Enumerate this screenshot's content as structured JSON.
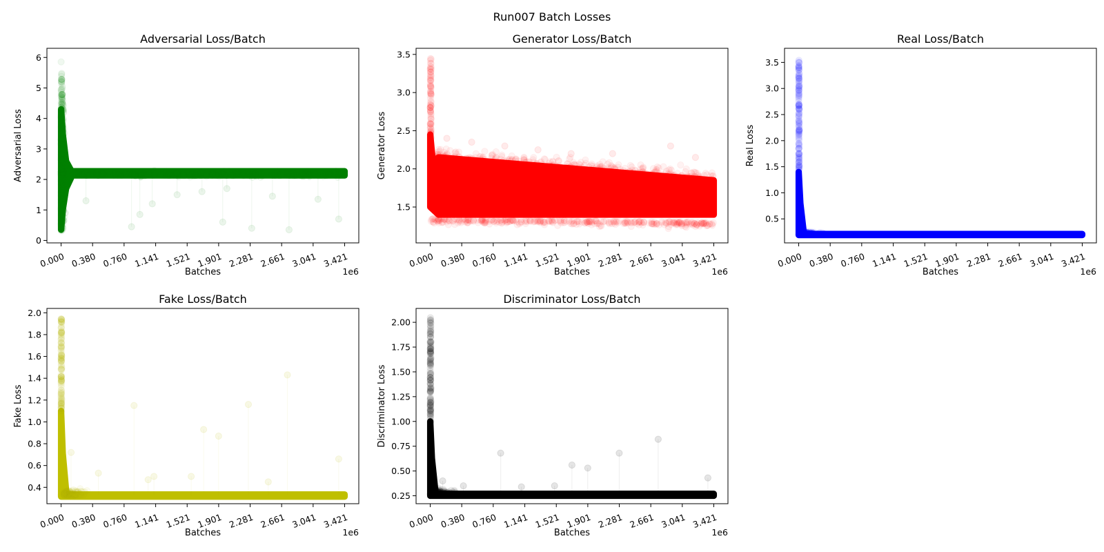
{
  "figure_title": "Run007 Batch Losses",
  "chart_data": [
    {
      "type": "scatter",
      "title": "Adversarial Loss/Batch",
      "xlabel": "Batches",
      "ylabel": "Adversarial Loss",
      "x_offset_label": "1e6",
      "color": "#008000",
      "xlim": [
        -0.171,
        3.592
      ],
      "ylim": [
        -0.08,
        6.3
      ],
      "x_ticks": [
        0.0,
        0.38,
        0.76,
        1.141,
        1.521,
        1.901,
        2.281,
        2.661,
        3.041,
        3.421
      ],
      "x_tick_labels": [
        "0.000",
        "0.380",
        "0.760",
        "1.141",
        "1.521",
        "1.901",
        "2.281",
        "2.661",
        "3.041",
        "3.421"
      ],
      "y_ticks": [
        0,
        1,
        2,
        3,
        4,
        5,
        6
      ],
      "y_tick_labels": [
        "0",
        "1",
        "2",
        "3",
        "4",
        "5",
        "6"
      ],
      "x_max": 3.421,
      "baseline": 2.2,
      "band_end": 2.1,
      "spike_peak": 6.0,
      "spike_low": 0.25,
      "spike_decay": 0.12,
      "outliers": [
        {
          "x": 0.85,
          "y": 0.45
        },
        {
          "x": 1.1,
          "y": 1.2
        },
        {
          "x": 1.4,
          "y": 1.5
        },
        {
          "x": 1.95,
          "y": 0.6
        },
        {
          "x": 2.3,
          "y": 0.4
        },
        {
          "x": 2.75,
          "y": 0.35
        },
        {
          "x": 0.05,
          "y": 0.9
        },
        {
          "x": 0.3,
          "y": 1.3
        },
        {
          "x": 3.35,
          "y": 0.7
        },
        {
          "x": 3.1,
          "y": 1.35
        },
        {
          "x": 0.95,
          "y": 0.85
        },
        {
          "x": 1.7,
          "y": 1.6
        },
        {
          "x": 2.0,
          "y": 1.7
        },
        {
          "x": 2.55,
          "y": 1.45
        }
      ]
    },
    {
      "type": "scatter",
      "title": "Generator Loss/Batch",
      "xlabel": "Batches",
      "ylabel": "Generator Loss",
      "x_offset_label": "1e6",
      "color": "#ff0000",
      "xlim": [
        -0.171,
        3.592
      ],
      "ylim": [
        1.03,
        3.58
      ],
      "x_ticks": [
        0.0,
        0.38,
        0.76,
        1.141,
        1.521,
        1.901,
        2.281,
        2.661,
        3.041,
        3.421
      ],
      "x_tick_labels": [
        "0.000",
        "0.380",
        "0.760",
        "1.141",
        "1.521",
        "1.901",
        "2.281",
        "2.661",
        "3.041",
        "3.421"
      ],
      "y_ticks": [
        1.5,
        2.0,
        2.5,
        3.0,
        3.5
      ],
      "y_tick_labels": [
        "1.5",
        "2.0",
        "2.5",
        "3.0",
        "3.5"
      ],
      "x_max": 3.421,
      "band_top_start": 2.15,
      "band_top_end": 1.85,
      "band_bottom_start": 1.35,
      "band_bottom_end": 1.3,
      "spike_peak": 3.45,
      "spike_high": 2.5,
      "outliers": [
        {
          "x": 0.5,
          "y": 2.35
        },
        {
          "x": 0.9,
          "y": 2.3
        },
        {
          "x": 1.3,
          "y": 2.25
        },
        {
          "x": 2.2,
          "y": 2.2
        },
        {
          "x": 2.9,
          "y": 2.3
        },
        {
          "x": 0.2,
          "y": 2.4
        },
        {
          "x": 1.7,
          "y": 2.2
        },
        {
          "x": 3.2,
          "y": 2.15
        }
      ]
    },
    {
      "type": "scatter",
      "title": "Real Loss/Batch",
      "xlabel": "Batches",
      "ylabel": "Real Loss",
      "x_offset_label": "1e6",
      "color": "#0000ff",
      "xlim": [
        -0.171,
        3.592
      ],
      "ylim": [
        0.04,
        3.77
      ],
      "x_ticks": [
        0.0,
        0.38,
        0.76,
        1.141,
        1.521,
        1.901,
        2.281,
        2.661,
        3.041,
        3.421
      ],
      "x_tick_labels": [
        "0.000",
        "0.380",
        "0.760",
        "1.141",
        "1.521",
        "1.901",
        "2.281",
        "2.661",
        "3.041",
        "3.421"
      ],
      "y_ticks": [
        0.5,
        1.0,
        1.5,
        2.0,
        2.5,
        3.0,
        3.5
      ],
      "y_tick_labels": [
        "0.5",
        "1.0",
        "1.5",
        "2.0",
        "2.5",
        "3.0",
        "3.5"
      ],
      "x_max": 3.421,
      "baseline": 0.2,
      "spike_peak": 3.58,
      "spike_dense": 1.4,
      "spike_decay": 0.03
    },
    {
      "type": "scatter",
      "title": "Fake Loss/Batch",
      "xlabel": "Batches",
      "ylabel": "Fake Loss",
      "x_offset_label": "1e6",
      "color": "#bfbf00",
      "xlim": [
        -0.171,
        3.592
      ],
      "ylim": [
        0.25,
        2.04
      ],
      "x_ticks": [
        0.0,
        0.38,
        0.76,
        1.141,
        1.521,
        1.901,
        2.281,
        2.661,
        3.041,
        3.421
      ],
      "x_tick_labels": [
        "0.000",
        "0.380",
        "0.760",
        "1.141",
        "1.521",
        "1.901",
        "2.281",
        "2.661",
        "3.041",
        "3.421"
      ],
      "y_ticks": [
        0.4,
        0.6,
        0.8,
        1.0,
        1.2,
        1.4,
        1.6,
        1.8,
        2.0
      ],
      "y_tick_labels": [
        "0.4",
        "0.6",
        "0.8",
        "1.0",
        "1.2",
        "1.4",
        "1.6",
        "1.8",
        "2.0"
      ],
      "x_max": 3.421,
      "baseline": 0.325,
      "spike_peak": 1.95,
      "spike_dense": 1.1,
      "spike_decay": 0.03,
      "outliers": [
        {
          "x": 0.88,
          "y": 1.15
        },
        {
          "x": 1.57,
          "y": 0.5
        },
        {
          "x": 1.72,
          "y": 0.93
        },
        {
          "x": 1.9,
          "y": 0.87
        },
        {
          "x": 2.26,
          "y": 1.16
        },
        {
          "x": 2.73,
          "y": 1.43
        },
        {
          "x": 3.35,
          "y": 0.66
        },
        {
          "x": 0.12,
          "y": 0.72
        },
        {
          "x": 0.45,
          "y": 0.53
        },
        {
          "x": 1.12,
          "y": 0.5
        },
        {
          "x": 2.5,
          "y": 0.45
        },
        {
          "x": 1.05,
          "y": 0.47
        }
      ]
    },
    {
      "type": "scatter",
      "title": "Discriminator Loss/Batch",
      "xlabel": "Batches",
      "ylabel": "Discriminator Loss",
      "x_offset_label": "1e6",
      "color": "#000000",
      "xlim": [
        -0.171,
        3.592
      ],
      "ylim": [
        0.17,
        2.14
      ],
      "x_ticks": [
        0.0,
        0.38,
        0.76,
        1.141,
        1.521,
        1.901,
        2.281,
        2.661,
        3.041,
        3.421
      ],
      "x_tick_labels": [
        "0.000",
        "0.380",
        "0.760",
        "1.141",
        "1.521",
        "1.901",
        "2.281",
        "2.661",
        "3.041",
        "3.421"
      ],
      "y_ticks": [
        0.25,
        0.5,
        0.75,
        1.0,
        1.25,
        1.5,
        1.75,
        2.0
      ],
      "y_tick_labels": [
        "0.25",
        "0.50",
        "0.75",
        "1.00",
        "1.25",
        "1.50",
        "1.75",
        "2.00"
      ],
      "x_max": 3.421,
      "baseline": 0.26,
      "spike_peak": 2.05,
      "spike_dense": 1.0,
      "spike_decay": 0.03,
      "outliers": [
        {
          "x": 0.85,
          "y": 0.68
        },
        {
          "x": 1.71,
          "y": 0.56
        },
        {
          "x": 1.9,
          "y": 0.53
        },
        {
          "x": 2.28,
          "y": 0.68
        },
        {
          "x": 2.75,
          "y": 0.82
        },
        {
          "x": 3.35,
          "y": 0.43
        },
        {
          "x": 0.4,
          "y": 0.35
        },
        {
          "x": 1.1,
          "y": 0.34
        },
        {
          "x": 0.15,
          "y": 0.4
        },
        {
          "x": 1.5,
          "y": 0.35
        }
      ]
    }
  ]
}
